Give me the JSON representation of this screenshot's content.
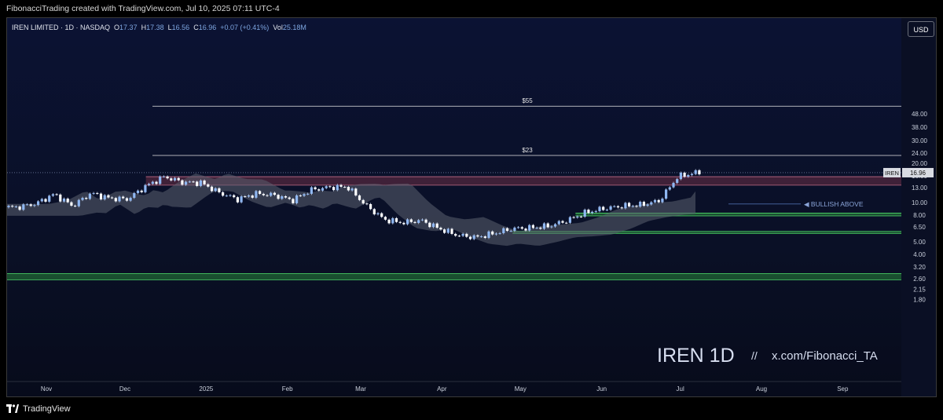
{
  "header": {
    "attribution": "FibonacciTrading created with TradingView.com, Jul 10, 2025 07:11 UTC-4"
  },
  "legend": {
    "symbol": "IREN LIMITED · 1D · NASDAQ",
    "open_label": "O",
    "open": "17.37",
    "high_label": "H",
    "high": "17.38",
    "low_label": "L",
    "low": "16.56",
    "close_label": "C",
    "close": "16.96",
    "change": "+0.07 (+0.41%)",
    "vol_label": "Vol",
    "vol": "25.18M"
  },
  "currency_button": "USD",
  "footer": {
    "brand": "TradingView"
  },
  "colors": {
    "up_candle": "#8fb7f2",
    "down_candle": "#ffffff",
    "cloud_gray": "#5b6170",
    "cloud_blue": "#2e4f8f",
    "resistance_zone": "#6b2f45",
    "support_zone": "#2f9e3f",
    "text": "#d9dee8"
  },
  "chart_data": {
    "type": "candlestick",
    "symbol": "IREN",
    "timeframe": "1D",
    "y_scale": "log",
    "ylim": [
      1.5,
      62
    ],
    "y_ticks": [
      "48.00",
      "38.00",
      "30.00",
      "24.00",
      "20.00",
      "16.00",
      "13.00",
      "10.00",
      "8.00",
      "6.50",
      "5.00",
      "4.00",
      "3.20",
      "2.60",
      "2.15",
      "1.80"
    ],
    "x_ticks": [
      "Nov",
      "Dec",
      "2025",
      "Feb",
      "Mar",
      "Apr",
      "May",
      "Jun",
      "Jul",
      "Aug",
      "Sep"
    ],
    "last_price_label": "IREN",
    "last_price": "16.96",
    "price_path": [
      {
        "date": "2024-10-21",
        "close": 9.2
      },
      {
        "date": "2024-10-28",
        "close": 9.8
      },
      {
        "date": "2024-11-04",
        "close": 11.6
      },
      {
        "date": "2024-11-11",
        "close": 9.4
      },
      {
        "date": "2024-11-18",
        "close": 11.8
      },
      {
        "date": "2024-11-25",
        "close": 10.8
      },
      {
        "date": "2024-12-02",
        "close": 10.6
      },
      {
        "date": "2024-12-09",
        "close": 13.4
      },
      {
        "date": "2024-12-16",
        "close": 15.8
      },
      {
        "date": "2024-12-23",
        "close": 14.3
      },
      {
        "date": "2024-12-30",
        "close": 14.2
      },
      {
        "date": "2025-01-06",
        "close": 11.9
      },
      {
        "date": "2025-01-13",
        "close": 10.6
      },
      {
        "date": "2025-01-20",
        "close": 11.7
      },
      {
        "date": "2025-01-27",
        "close": 11.4
      },
      {
        "date": "2025-02-03",
        "close": 10.4
      },
      {
        "date": "2025-02-10",
        "close": 12.5
      },
      {
        "date": "2025-02-17",
        "close": 13.1
      },
      {
        "date": "2025-02-24",
        "close": 13.2
      },
      {
        "date": "2025-03-03",
        "close": 9.5
      },
      {
        "date": "2025-03-10",
        "close": 7.4
      },
      {
        "date": "2025-03-17",
        "close": 7.0
      },
      {
        "date": "2025-03-24",
        "close": 7.3
      },
      {
        "date": "2025-03-31",
        "close": 6.3
      },
      {
        "date": "2025-04-07",
        "close": 5.6
      },
      {
        "date": "2025-04-14",
        "close": 5.4
      },
      {
        "date": "2025-04-21",
        "close": 5.8
      },
      {
        "date": "2025-04-28",
        "close": 6.3
      },
      {
        "date": "2025-05-05",
        "close": 6.4
      },
      {
        "date": "2025-05-12",
        "close": 6.6
      },
      {
        "date": "2025-05-19",
        "close": 7.3
      },
      {
        "date": "2025-05-26",
        "close": 8.4
      },
      {
        "date": "2025-06-02",
        "close": 9.0
      },
      {
        "date": "2025-06-09",
        "close": 9.4
      },
      {
        "date": "2025-06-16",
        "close": 9.6
      },
      {
        "date": "2025-06-23",
        "close": 10.3
      },
      {
        "date": "2025-06-30",
        "close": 15.8
      },
      {
        "date": "2025-07-07",
        "close": 16.96
      }
    ],
    "horizontal_levels": [
      {
        "label": "$55",
        "value": 55
      },
      {
        "label": "$23",
        "value": 23
      }
    ],
    "zones": [
      {
        "name": "resistance",
        "from": 13.6,
        "to": 15.8
      },
      {
        "name": "support",
        "from": 7.9,
        "to": 8.3
      },
      {
        "name": "support",
        "from": 5.8,
        "to": 6.0
      },
      {
        "name": "support",
        "from": 2.55,
        "to": 2.85
      }
    ],
    "annotation": "◀ BULLISH ABOVE",
    "watermark": {
      "symbol": "IREN 1D",
      "separator": "//",
      "handle": "x.com/Fibonacci_TA"
    }
  }
}
